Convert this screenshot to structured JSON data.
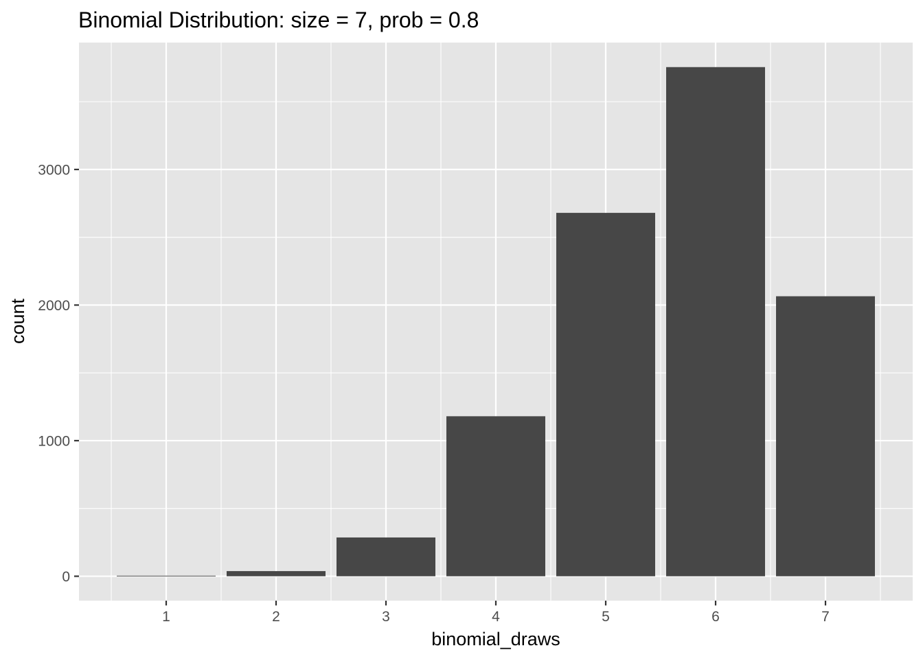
{
  "chart_data": {
    "type": "bar",
    "title": "Binomial Distribution: size = 7, prob = 0.8",
    "xlabel": "binomial_draws",
    "ylabel": "count",
    "categories": [
      "1",
      "2",
      "3",
      "4",
      "5",
      "6",
      "7"
    ],
    "values": [
      4,
      38,
      286,
      1180,
      2680,
      3755,
      2065
    ],
    "ylim": [
      -180,
      3936
    ],
    "yticks": [
      "0",
      "1000",
      "2000",
      "3000"
    ],
    "ytick_values": [
      0,
      1000,
      2000,
      3000
    ],
    "y_minor_gridlines": [
      500,
      1500,
      2500,
      3500
    ],
    "grid": true,
    "legend": "none",
    "colors": {
      "bar": "#474747",
      "panel": "#e5e5e5",
      "grid": "#ffffff",
      "tick_text": "#4d4d4d",
      "tick_mark": "#333333"
    }
  }
}
